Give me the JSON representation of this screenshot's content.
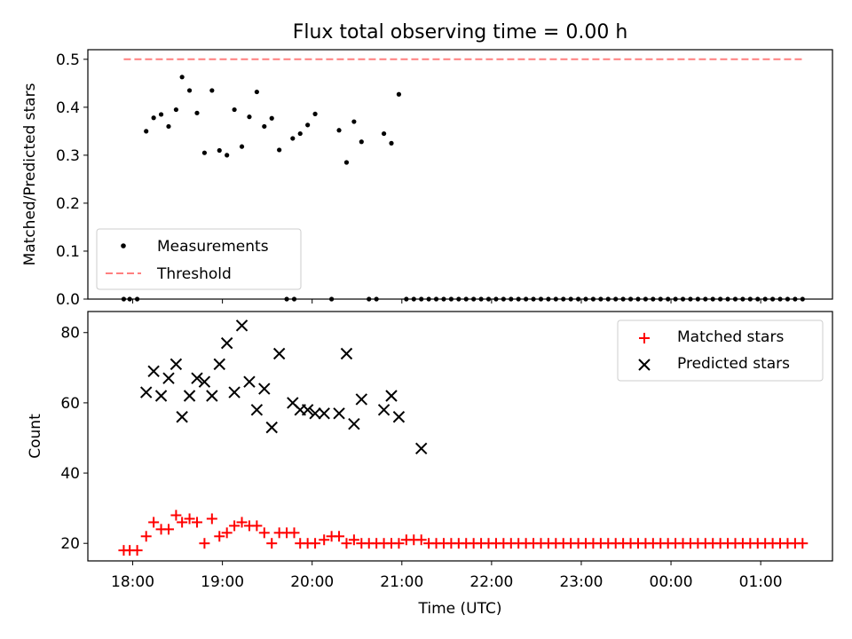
{
  "figure": {
    "title": "Flux total observing time = 0.00 h",
    "xlabel": "Time (UTC)"
  },
  "colors": {
    "measurement": "#000000",
    "threshold": "#ff7f7f",
    "matched": "#ff0000",
    "predicted": "#000000"
  },
  "chart_data": [
    {
      "type": "scatter",
      "name": "ratio",
      "ylabel": "Matched/Predicted stars",
      "xlim": [
        "17:30",
        "01:48"
      ],
      "ylim": [
        0,
        0.52
      ],
      "yticks": [
        0.0,
        0.1,
        0.2,
        0.3,
        0.4,
        0.5
      ],
      "xticks_shown": false,
      "legend": "lower-left",
      "series": [
        {
          "name": "Measurements",
          "marker": "dot",
          "x": [
            "18:09",
            "18:14",
            "18:19",
            "18:24",
            "18:29",
            "18:33",
            "18:38",
            "18:43",
            "18:48",
            "18:53",
            "18:58",
            "19:03",
            "19:08",
            "19:13",
            "19:18",
            "19:23",
            "19:28",
            "19:33",
            "19:38",
            "19:47",
            "19:52",
            "19:57",
            "20:02",
            "20:18",
            "20:23",
            "20:28",
            "20:33",
            "20:48",
            "20:53",
            "20:58",
            "21:13",
            "17:54",
            "17:58",
            "18:03",
            "19:43",
            "19:48",
            "20:13",
            "20:38",
            "20:43",
            "21:03",
            "21:08",
            "21:18",
            "21:23",
            "21:28",
            "21:33",
            "21:38",
            "21:43",
            "21:48",
            "21:53",
            "21:58",
            "22:03",
            "22:08",
            "22:13",
            "22:18",
            "22:23",
            "22:28",
            "22:33",
            "22:38",
            "22:43",
            "22:48",
            "22:53",
            "22:58",
            "23:03",
            "23:08",
            "23:13",
            "23:18",
            "23:23",
            "23:28",
            "23:33",
            "23:38",
            "23:43",
            "23:48",
            "23:53",
            "23:58",
            "00:03",
            "00:08",
            "00:13",
            "00:18",
            "00:23",
            "00:28",
            "00:33",
            "00:38",
            "00:43",
            "00:48",
            "00:53",
            "00:58",
            "01:03",
            "01:08",
            "01:13",
            "01:18",
            "01:23",
            "01:28"
          ],
          "y": [
            0.35,
            0.378,
            0.385,
            0.36,
            0.395,
            0.463,
            0.435,
            0.388,
            0.305,
            0.435,
            0.31,
            0.3,
            0.395,
            0.318,
            0.38,
            0.432,
            0.36,
            0.377,
            0.311,
            0.335,
            0.345,
            0.363,
            0.386,
            0.352,
            0.285,
            0.37,
            0.328,
            0.345,
            0.325,
            0.427,
            0,
            0,
            0,
            0,
            0,
            0,
            0,
            0,
            0,
            0,
            0,
            0,
            0,
            0,
            0,
            0,
            0,
            0,
            0,
            0,
            0,
            0,
            0,
            0,
            0,
            0,
            0,
            0,
            0,
            0,
            0,
            0,
            0,
            0,
            0,
            0,
            0,
            0,
            0,
            0,
            0,
            0,
            0,
            0,
            0,
            0,
            0,
            0,
            0,
            0,
            0,
            0,
            0,
            0,
            0,
            0,
            0,
            0,
            0,
            0,
            0,
            0
          ]
        },
        {
          "name": "Threshold",
          "marker": "dashed-line",
          "x": [
            "17:54",
            "01:28"
          ],
          "y": [
            0.5,
            0.5
          ]
        }
      ]
    },
    {
      "type": "scatter",
      "name": "counts",
      "ylabel": "Count",
      "xlim": [
        "17:30",
        "01:48"
      ],
      "ylim": [
        15,
        86
      ],
      "yticks": [
        20,
        40,
        60,
        80
      ],
      "xticks": [
        "18:00",
        "19:00",
        "20:00",
        "21:00",
        "22:00",
        "23:00",
        "00:00",
        "01:00"
      ],
      "legend": "upper-right",
      "series": [
        {
          "name": "Matched stars",
          "marker": "plus",
          "x": [
            "17:54",
            "17:58",
            "18:03",
            "18:09",
            "18:14",
            "18:19",
            "18:24",
            "18:29",
            "18:33",
            "18:38",
            "18:43",
            "18:48",
            "18:53",
            "18:58",
            "19:03",
            "19:08",
            "19:13",
            "19:18",
            "19:23",
            "19:28",
            "19:33",
            "19:38",
            "19:43",
            "19:48",
            "19:52",
            "19:57",
            "20:02",
            "20:08",
            "20:13",
            "20:18",
            "20:23",
            "20:28",
            "20:33",
            "20:38",
            "20:43",
            "20:48",
            "20:53",
            "20:58",
            "21:03",
            "21:08",
            "21:13",
            "21:18",
            "21:23",
            "21:28",
            "21:33",
            "21:38",
            "21:43",
            "21:48",
            "21:53",
            "21:58",
            "22:03",
            "22:08",
            "22:13",
            "22:18",
            "22:23",
            "22:28",
            "22:33",
            "22:38",
            "22:43",
            "22:48",
            "22:53",
            "22:58",
            "23:03",
            "23:08",
            "23:13",
            "23:18",
            "23:23",
            "23:28",
            "23:33",
            "23:38",
            "23:43",
            "23:48",
            "23:53",
            "23:58",
            "00:03",
            "00:08",
            "00:13",
            "00:18",
            "00:23",
            "00:28",
            "00:33",
            "00:38",
            "00:43",
            "00:48",
            "00:53",
            "00:58",
            "01:03",
            "01:08",
            "01:13",
            "01:18",
            "01:23",
            "01:28"
          ],
          "y": [
            18,
            18,
            18,
            22,
            26,
            24,
            24,
            28,
            26,
            27,
            26,
            20,
            27,
            22,
            23,
            25,
            26,
            25,
            25,
            23,
            20,
            23,
            23,
            23,
            20,
            20,
            20,
            21,
            22,
            22,
            20,
            21,
            20,
            20,
            20,
            20,
            20,
            20,
            21,
            21,
            21,
            20,
            20,
            20,
            20,
            20,
            20,
            20,
            20,
            20,
            20,
            20,
            20,
            20,
            20,
            20,
            20,
            20,
            20,
            20,
            20,
            20,
            20,
            20,
            20,
            20,
            20,
            20,
            20,
            20,
            20,
            20,
            20,
            20,
            20,
            20,
            20,
            20,
            20,
            20,
            20,
            20,
            20,
            20,
            20,
            20,
            20,
            20,
            20,
            20,
            20,
            20
          ]
        },
        {
          "name": "Predicted stars",
          "marker": "x",
          "x": [
            "18:09",
            "18:14",
            "18:19",
            "18:24",
            "18:29",
            "18:33",
            "18:38",
            "18:43",
            "18:48",
            "18:53",
            "18:58",
            "19:03",
            "19:08",
            "19:13",
            "19:18",
            "19:23",
            "19:28",
            "19:33",
            "19:38",
            "19:47",
            "19:52",
            "19:57",
            "20:02",
            "20:08",
            "20:18",
            "20:23",
            "20:28",
            "20:33",
            "20:48",
            "20:53",
            "20:58",
            "21:13"
          ],
          "y": [
            63,
            69,
            62,
            67,
            71,
            56,
            62,
            67,
            66,
            62,
            71,
            77,
            63,
            82,
            66,
            58,
            64,
            53,
            74,
            60,
            58,
            58,
            57,
            57,
            57,
            74,
            54,
            61,
            58,
            62,
            56,
            47
          ]
        }
      ]
    }
  ]
}
